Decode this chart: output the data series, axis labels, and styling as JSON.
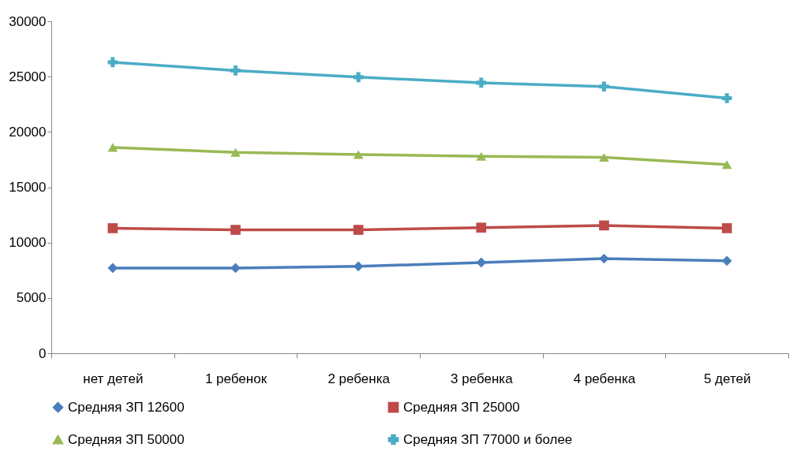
{
  "chart_data": {
    "type": "line",
    "categories": [
      "нет детей",
      "1 ребенок",
      "2 ребенка",
      "3 ребенка",
      "4 ребенка",
      "5 детей"
    ],
    "series": [
      {
        "name": "Средняя ЗП  12600",
        "color": "#4a7ebb",
        "marker": "diamond",
        "values": [
          7700,
          7700,
          7850,
          8200,
          8550,
          8350
        ]
      },
      {
        "name": "Средняя ЗП  25000",
        "color": "#be4b48",
        "marker": "square",
        "values": [
          11300,
          11150,
          11150,
          11350,
          11550,
          11300
        ]
      },
      {
        "name": "Средняя ЗП  50000",
        "color": "#98b954",
        "marker": "triangle",
        "values": [
          18600,
          18150,
          17950,
          17800,
          17700,
          17050
        ]
      },
      {
        "name": "Средняя ЗП  77000 и более",
        "color": "#4bacc6",
        "marker": "cross",
        "values": [
          26300,
          25550,
          24950,
          24450,
          24100,
          23050
        ]
      }
    ],
    "ylim": [
      0,
      30000
    ],
    "yticks": [
      0,
      5000,
      10000,
      15000,
      20000,
      25000,
      30000
    ],
    "grid": false,
    "legend": "bottom",
    "line_style": "solid"
  }
}
